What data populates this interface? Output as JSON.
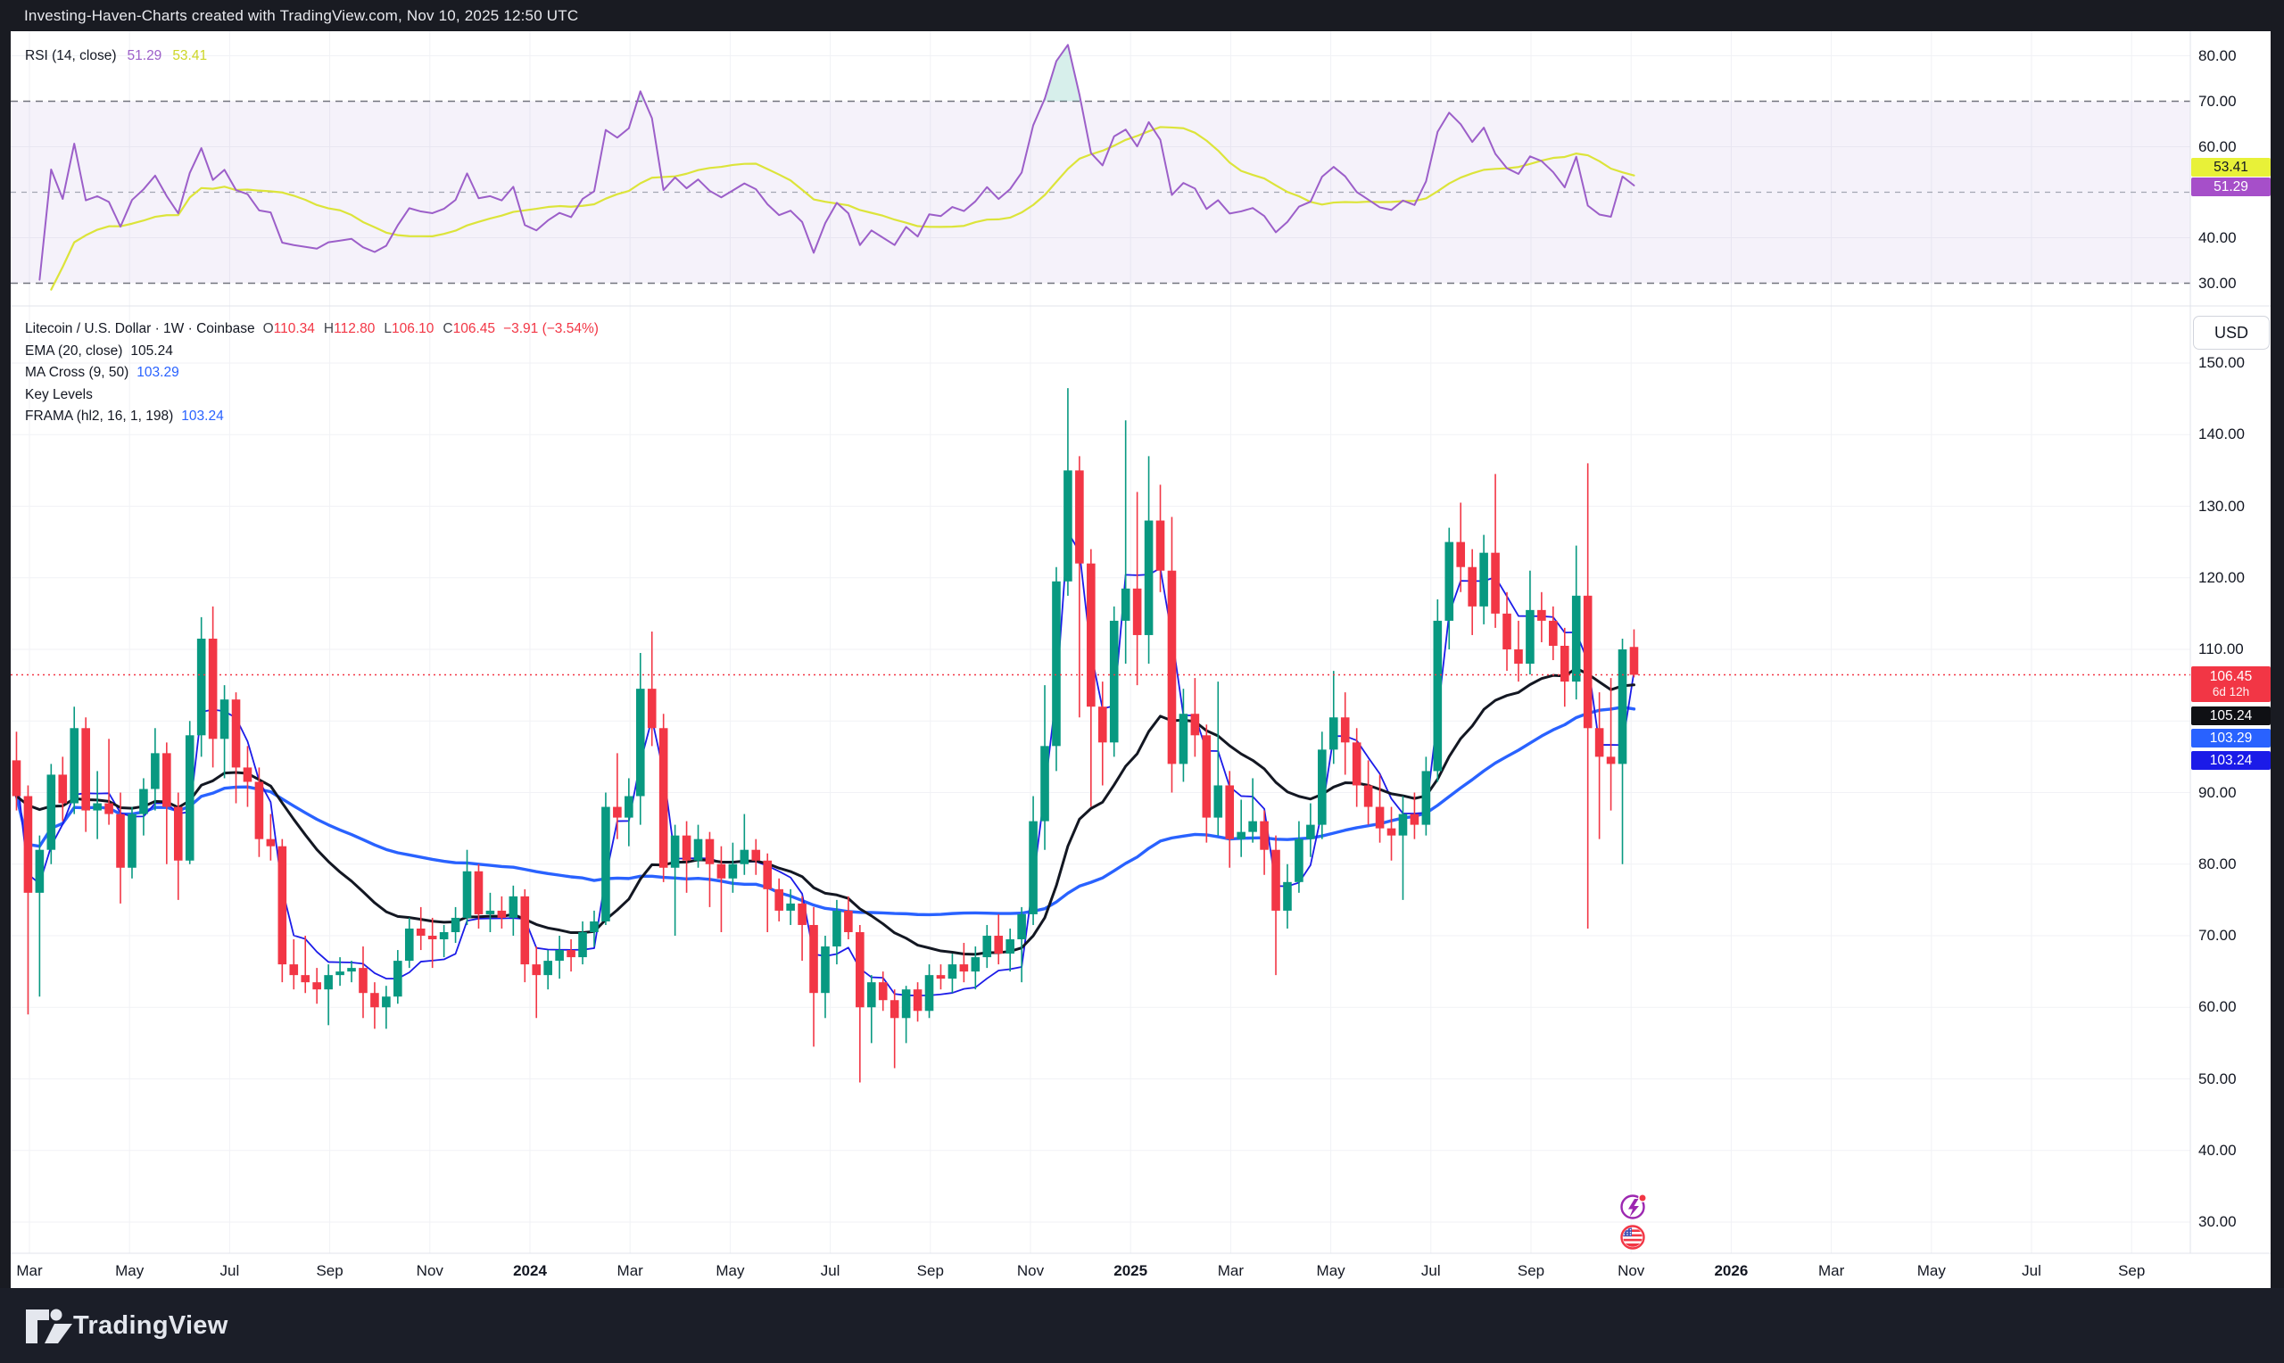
{
  "header": {
    "title": "Investing-Haven-Charts created with TradingView.com, Nov 10, 2025 12:50 UTC"
  },
  "rsi_pane": {
    "label": "RSI (14, close)",
    "rsi_value": "51.29",
    "ma_value": "53.41",
    "axis_labels": [
      "80.00",
      "70.00",
      "60.00",
      "40.00",
      "30.00"
    ],
    "tags": {
      "ma": "53.41",
      "rsi": "51.29"
    },
    "colors": {
      "rsi_line": "#9c5fc9",
      "ma_line": "#dce43a",
      "band": "#7e57c2",
      "ma_tag_bg": "#e8f138",
      "rsi_tag_bg": "#a64fc9",
      "over_fill": "#089981"
    }
  },
  "legend": {
    "symbol": "Litecoin / U.S. Dollar · 1W · Coinbase",
    "ohlc": [
      {
        "k": "O",
        "v": "110.34"
      },
      {
        "k": "H",
        "v": "112.80"
      },
      {
        "k": "L",
        "v": "106.10"
      },
      {
        "k": "C",
        "v": "106.45"
      }
    ],
    "change": "−3.91 (−3.54%)",
    "rows": [
      {
        "name": "EMA (20, close)",
        "value": "105.24",
        "value_color": "#131722"
      },
      {
        "name": "MA Cross (9, 50)",
        "value": "103.29",
        "value_color": "#2962ff"
      },
      {
        "name": "Key Levels",
        "value": "",
        "value_color": "#131722"
      },
      {
        "name": "FRAMA (hl2, 16, 1, 198)",
        "value": "103.24",
        "value_color": "#2962ff"
      }
    ]
  },
  "price_axis": {
    "currency": "USD",
    "labels": [
      "150.00",
      "140.00",
      "130.00",
      "120.00",
      "110.00",
      "90.00",
      "80.00",
      "70.00",
      "60.00",
      "50.00",
      "40.00",
      "30.00"
    ],
    "tags": [
      {
        "text": "106.45",
        "sub": "6d 12h",
        "bg": "#f23645"
      },
      {
        "text": "105.24",
        "sub": "",
        "bg": "#0f1014"
      },
      {
        "text": "103.29",
        "sub": "",
        "bg": "#2962ff"
      },
      {
        "text": "103.24",
        "sub": "",
        "bg": "#1b1be8"
      }
    ]
  },
  "time_axis": {
    "labels": [
      "Mar",
      "May",
      "Jul",
      "Sep",
      "Nov",
      "2024",
      "Mar",
      "May",
      "Jul",
      "Sep",
      "Nov",
      "2025",
      "Mar",
      "May",
      "Jul",
      "Sep",
      "Nov",
      "2026",
      "Mar",
      "May",
      "Jul",
      "Sep"
    ],
    "bold_labels": [
      "2024",
      "2025",
      "2026"
    ]
  },
  "footer": {
    "brand": "TradingView"
  },
  "icons": {
    "event1": "economic-event-lightning-icon",
    "event2": "us-flag-event-icon"
  },
  "colors": {
    "up": "#089981",
    "down": "#f23645",
    "ema": "#131722",
    "ma_cross": "#2962ff",
    "frama": "#1b1be8",
    "price_line": "#f23645",
    "grid": "#f1f2f6",
    "axis_border": "#e0e3eb",
    "chrome": "#191b22",
    "footer_bg": "#1b1e28",
    "paper": "#ffffff"
  },
  "chart_data": {
    "type": "candlestick+line",
    "symbol": "Litecoin / U.S. Dollar",
    "exchange": "Coinbase",
    "interval": "1W",
    "start_week": "2023-03-06",
    "last_bar_time_left": "6d 12h",
    "ohlc_last": {
      "open": 110.34,
      "high": 112.8,
      "low": 106.1,
      "close": 106.45,
      "change": -3.91,
      "change_pct": -3.54
    },
    "price_axis_range": [
      26,
      153.4
    ],
    "rsi": {
      "length": 14,
      "source": "close",
      "last": 51.29,
      "ma_last": 53.41,
      "levels": [
        70,
        50,
        30
      ],
      "range": [
        22,
        84
      ]
    },
    "overlays": [
      {
        "name": "EMA (20, close)",
        "last": 105.24,
        "color": "#131722"
      },
      {
        "name": "MA Cross (9, 50)",
        "last": 103.29,
        "color": "#2962ff"
      },
      {
        "name": "Key Levels",
        "last": null,
        "color": null
      },
      {
        "name": "FRAMA (hl2, 16, 1, 198)",
        "last": 103.24,
        "color": "#1b1be8"
      }
    ],
    "candles": [
      [
        94.5,
        98.5,
        87.5,
        89.5
      ],
      [
        89.5,
        91,
        59,
        76
      ],
      [
        76,
        84,
        61.5,
        82
      ],
      [
        82,
        94,
        80,
        92.5
      ],
      [
        92.5,
        95,
        86,
        88.5
      ],
      [
        88.5,
        102,
        87,
        99
      ],
      [
        99,
        100.5,
        84.5,
        87.5
      ],
      [
        87.5,
        93,
        83.5,
        88.5
      ],
      [
        88.5,
        97.5,
        85.5,
        87
      ],
      [
        87,
        90,
        74.5,
        79.5
      ],
      [
        79.5,
        88,
        78,
        87
      ],
      [
        87,
        92,
        84,
        90.5
      ],
      [
        90.5,
        99,
        87.5,
        95.5
      ],
      [
        95.5,
        97,
        80,
        88
      ],
      [
        88,
        90,
        75,
        80.5
      ],
      [
        80.5,
        100,
        80,
        98
      ],
      [
        98,
        114.5,
        95,
        111.5
      ],
      [
        111.5,
        116,
        93.5,
        97.5
      ],
      [
        97.5,
        105,
        92,
        103
      ],
      [
        103,
        104,
        88.5,
        93.5
      ],
      [
        93.5,
        96.5,
        88,
        91.5
      ],
      [
        91.5,
        93.5,
        81,
        83.5
      ],
      [
        83.5,
        87,
        80.5,
        82.5
      ],
      [
        82.5,
        83.5,
        63.5,
        66
      ],
      [
        66,
        69.5,
        62.5,
        64.5
      ],
      [
        64.5,
        70,
        62,
        63.5
      ],
      [
        63.5,
        65.5,
        60.5,
        62.5
      ],
      [
        62.5,
        66,
        57.5,
        64.5
      ],
      [
        64.5,
        67,
        63,
        65
      ],
      [
        65,
        66.5,
        63.5,
        65.5
      ],
      [
        65.5,
        68.5,
        58.5,
        62
      ],
      [
        62,
        63.5,
        57,
        60
      ],
      [
        60,
        63,
        57,
        61.5
      ],
      [
        61.5,
        68,
        60.5,
        66.5
      ],
      [
        66.5,
        72.5,
        65.5,
        71
      ],
      [
        71,
        74,
        68,
        70
      ],
      [
        70,
        72.5,
        65.5,
        69.5
      ],
      [
        69.5,
        71.5,
        67,
        70.5
      ],
      [
        70.5,
        74,
        69,
        72.5
      ],
      [
        72.5,
        82,
        71.5,
        79
      ],
      [
        79,
        80,
        71,
        73
      ],
      [
        73,
        76,
        70.5,
        73.5
      ],
      [
        73.5,
        75.5,
        71,
        72.5
      ],
      [
        72.5,
        77,
        70,
        75.5
      ],
      [
        75.5,
        76.5,
        63.5,
        66
      ],
      [
        66,
        68.5,
        58.5,
        64.5
      ],
      [
        64.5,
        68,
        62.5,
        66.5
      ],
      [
        66.5,
        70,
        64,
        68
      ],
      [
        68,
        69.5,
        65,
        67
      ],
      [
        67,
        72,
        66,
        70.5
      ],
      [
        70.5,
        73.5,
        68.5,
        72
      ],
      [
        72,
        90,
        71.5,
        88
      ],
      [
        88,
        95.5,
        83.5,
        86.5
      ],
      [
        86.5,
        92,
        82.5,
        89.5
      ],
      [
        89.5,
        109.5,
        85.5,
        104.5
      ],
      [
        104.5,
        112.5,
        96.5,
        99
      ],
      [
        99,
        101,
        77.5,
        79.5
      ],
      [
        79.5,
        85.5,
        70,
        84
      ],
      [
        84,
        86,
        76,
        80.5
      ],
      [
        80.5,
        85.5,
        79.5,
        83.5
      ],
      [
        83.5,
        84.5,
        74,
        80
      ],
      [
        80,
        82.5,
        70.5,
        78
      ],
      [
        78,
        83,
        76,
        80
      ],
      [
        80,
        87,
        78.5,
        82
      ],
      [
        82,
        83.5,
        78.5,
        80.5
      ],
      [
        80.5,
        81.5,
        70.5,
        76.5
      ],
      [
        76.5,
        78,
        72,
        73.5
      ],
      [
        73.5,
        76.5,
        71.5,
        74.5
      ],
      [
        74.5,
        75.5,
        66.5,
        71.5
      ],
      [
        71.5,
        74,
        54.5,
        62
      ],
      [
        62,
        70,
        58.5,
        68.5
      ],
      [
        68.5,
        75,
        66,
        73.5
      ],
      [
        73.5,
        75.5,
        69.5,
        70.5
      ],
      [
        70.5,
        71.5,
        49.5,
        60
      ],
      [
        60,
        64.5,
        55,
        63.5
      ],
      [
        63.5,
        65,
        59.5,
        61
      ],
      [
        61,
        62.5,
        51.5,
        58.5
      ],
      [
        58.5,
        63,
        55,
        62.5
      ],
      [
        62.5,
        63.5,
        58,
        59.5
      ],
      [
        59.5,
        66,
        58.5,
        64.5
      ],
      [
        64.5,
        66,
        62.5,
        64
      ],
      [
        64,
        67.5,
        62,
        66
      ],
      [
        66,
        69,
        63.5,
        65
      ],
      [
        65,
        68.5,
        62.5,
        67
      ],
      [
        67,
        71.5,
        65.5,
        70
      ],
      [
        70,
        73,
        66,
        67.5
      ],
      [
        67.5,
        71,
        65,
        69.5
      ],
      [
        69.5,
        74,
        63.5,
        73
      ],
      [
        73,
        89.5,
        71.5,
        86
      ],
      [
        86,
        105,
        82,
        96.5
      ],
      [
        96.5,
        121.5,
        93,
        119.5
      ],
      [
        119.5,
        146.5,
        117.5,
        135
      ],
      [
        135,
        137,
        100.5,
        122
      ],
      [
        122,
        124,
        88,
        102
      ],
      [
        102,
        105.5,
        91,
        97
      ],
      [
        97,
        116,
        95,
        114
      ],
      [
        114,
        142,
        108,
        118.5
      ],
      [
        118.5,
        132,
        105,
        112
      ],
      [
        112,
        137,
        108,
        128
      ],
      [
        128,
        133,
        118,
        121
      ],
      [
        121,
        128.5,
        90,
        94
      ],
      [
        94,
        104.5,
        91.5,
        101
      ],
      [
        101,
        106,
        95,
        98
      ],
      [
        98,
        99.5,
        83,
        86.5
      ],
      [
        86.5,
        105.5,
        84,
        91
      ],
      [
        91,
        93,
        79.5,
        83.5
      ],
      [
        83.5,
        89,
        81,
        84.5
      ],
      [
        84.5,
        92,
        83,
        86
      ],
      [
        86,
        87.5,
        78.5,
        82
      ],
      [
        82,
        84,
        64.5,
        73.5
      ],
      [
        73.5,
        80,
        71,
        77.5
      ],
      [
        77.5,
        86,
        76,
        83.5
      ],
      [
        83.5,
        88.5,
        81,
        85.5
      ],
      [
        85.5,
        98.5,
        83.5,
        96
      ],
      [
        96,
        107,
        94,
        100.5
      ],
      [
        100.5,
        104,
        92.5,
        97
      ],
      [
        97,
        99,
        88,
        91
      ],
      [
        91,
        94.5,
        85.5,
        88
      ],
      [
        88,
        92.5,
        83,
        85
      ],
      [
        85,
        88,
        80.5,
        84
      ],
      [
        84,
        89.5,
        75,
        87
      ],
      [
        87,
        90,
        83.5,
        85.5
      ],
      [
        85.5,
        95,
        84,
        93
      ],
      [
        93,
        117,
        91.5,
        114
      ],
      [
        114,
        127,
        110,
        125
      ],
      [
        125,
        130.5,
        118,
        121.5
      ],
      [
        121.5,
        124,
        112,
        116
      ],
      [
        116,
        126,
        113.5,
        123.5
      ],
      [
        123.5,
        134.5,
        113,
        115
      ],
      [
        115,
        118,
        107,
        110
      ],
      [
        110,
        114,
        105.5,
        108
      ],
      [
        108,
        121,
        106.5,
        115.5
      ],
      [
        115.5,
        118,
        111,
        114
      ],
      [
        114,
        116,
        108.5,
        110.5
      ],
      [
        110.5,
        113,
        102,
        105.5
      ],
      [
        105.5,
        124.5,
        103,
        117.5
      ],
      [
        117.5,
        136,
        71,
        99
      ],
      [
        99,
        104,
        83.5,
        95
      ],
      [
        95,
        106,
        87.5,
        94
      ],
      [
        94,
        111.5,
        80,
        110
      ],
      [
        110.34,
        112.8,
        106.1,
        106.45
      ]
    ]
  }
}
